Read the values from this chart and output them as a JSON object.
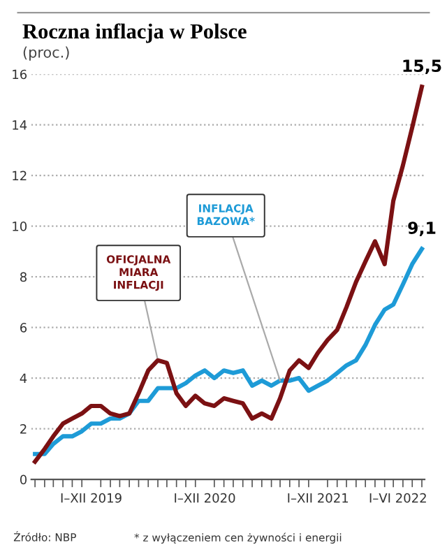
{
  "chart_data": {
    "type": "line",
    "title": "Roczna inflacja w Polsce",
    "subtitle": "(proc.)",
    "x": [
      "2019-01",
      "2019-02",
      "2019-03",
      "2019-04",
      "2019-05",
      "2019-06",
      "2019-07",
      "2019-08",
      "2019-09",
      "2019-10",
      "2019-11",
      "2019-12",
      "2020-01",
      "2020-02",
      "2020-03",
      "2020-04",
      "2020-05",
      "2020-06",
      "2020-07",
      "2020-08",
      "2020-09",
      "2020-10",
      "2020-11",
      "2020-12",
      "2021-01",
      "2021-02",
      "2021-03",
      "2021-04",
      "2021-05",
      "2021-06",
      "2021-07",
      "2021-08",
      "2021-09",
      "2021-10",
      "2021-11",
      "2021-12",
      "2022-01",
      "2022-02",
      "2022-03",
      "2022-04",
      "2022-05",
      "2022-06"
    ],
    "series": [
      {
        "name": "OFICJALNA MIARA INFLACJI",
        "color": "#7b1113",
        "values": [
          0.7,
          1.2,
          1.7,
          2.2,
          2.4,
          2.6,
          2.9,
          2.9,
          2.6,
          2.5,
          2.6,
          3.4,
          4.3,
          4.7,
          4.6,
          3.4,
          2.9,
          3.3,
          3.0,
          2.9,
          3.2,
          3.1,
          3.0,
          2.4,
          2.6,
          2.4,
          3.2,
          4.3,
          4.7,
          4.4,
          5.0,
          5.5,
          5.9,
          6.8,
          7.8,
          8.6,
          9.4,
          8.5,
          11.0,
          12.4,
          13.9,
          15.5
        ],
        "value_labels": [
          null,
          null,
          null,
          null,
          null,
          null,
          null,
          null,
          null,
          null,
          null,
          null,
          null,
          null,
          null,
          null,
          null,
          null,
          null,
          null,
          null,
          null,
          null,
          null,
          null,
          null,
          null,
          null,
          null,
          null,
          null,
          null,
          null,
          null,
          null,
          null,
          null,
          null,
          null,
          null,
          null,
          "15,5"
        ]
      },
      {
        "name": "INFLACJA BAZOWA*",
        "color": "#1e9bd7",
        "values": [
          1.0,
          1.0,
          1.4,
          1.7,
          1.7,
          1.9,
          2.2,
          2.2,
          2.4,
          2.4,
          2.6,
          3.1,
          3.1,
          3.6,
          3.6,
          3.6,
          3.8,
          4.1,
          4.3,
          4.0,
          4.3,
          4.2,
          4.3,
          3.7,
          3.9,
          3.7,
          3.9,
          3.9,
          4.0,
          3.5,
          3.7,
          3.9,
          4.2,
          4.5,
          4.7,
          5.3,
          6.1,
          6.7,
          6.9,
          7.7,
          8.5,
          9.1
        ],
        "value_labels": [
          null,
          null,
          null,
          null,
          null,
          null,
          null,
          null,
          null,
          null,
          null,
          null,
          null,
          null,
          null,
          null,
          null,
          null,
          null,
          null,
          null,
          null,
          null,
          null,
          null,
          null,
          null,
          null,
          null,
          null,
          null,
          null,
          null,
          null,
          null,
          null,
          null,
          null,
          null,
          null,
          null,
          "9,1"
        ]
      }
    ],
    "xlim": [
      "2018-12-20",
      "2022-06-10"
    ],
    "xticks": [
      {
        "value": "2019-07-01",
        "label": "I–XII 2019"
      },
      {
        "value": "2020-07-01",
        "label": "I–XII 2020"
      },
      {
        "value": "2021-07-01",
        "label": "I–XII 2021"
      },
      {
        "value": "2022-03-16",
        "label": "I–VI 2022"
      }
    ],
    "ylim": [
      0,
      16
    ],
    "yticks": [
      0,
      2,
      4,
      6,
      8,
      10,
      12,
      14,
      16
    ],
    "grid": "y",
    "legend": false,
    "marker": "none",
    "line_style": "solid",
    "annotations": [
      "Źródło: NBP",
      "* z wyłączeniem cen żywności i energii"
    ]
  }
}
